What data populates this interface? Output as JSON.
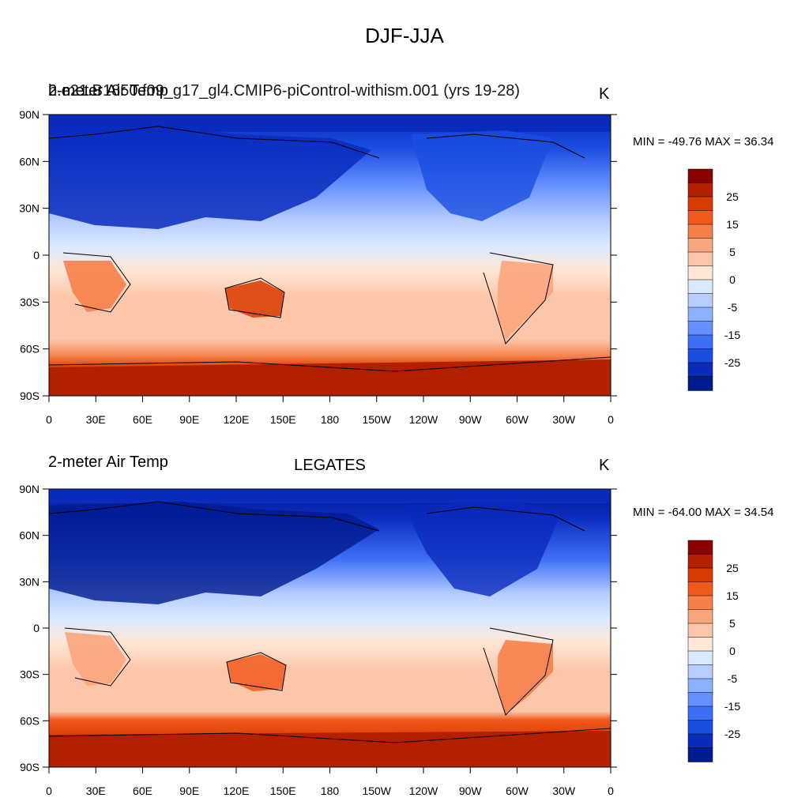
{
  "figure": {
    "title": "DJF-JJA"
  },
  "panels": [
    {
      "left_title_a": "2-meter Air Temp",
      "left_title_b": "b.e21.B1850.f09_g17_gl4.CMIP6-piControl-withism.001 (yrs 19-28)",
      "center_title": "",
      "units": "K",
      "min_max": "MIN = -49.76 MAX =  36.34"
    },
    {
      "left_title_a": "2-meter Air Temp",
      "left_title_b": "",
      "center_title": "LEGATES",
      "units": "K",
      "min_max": "MIN = -64.00 MAX =  34.54"
    }
  ],
  "axes": {
    "lon_labels": [
      "0",
      "30E",
      "60E",
      "90E",
      "120E",
      "150E",
      "180",
      "150W",
      "120W",
      "90W",
      "60W",
      "30W",
      "0"
    ],
    "lat_labels": [
      "90N",
      "60N",
      "30N",
      "0",
      "30S",
      "60S",
      "90S"
    ]
  },
  "colorbar": {
    "labels": [
      "25",
      "15",
      "5",
      "0",
      "-5",
      "-15",
      "-25"
    ],
    "colors": [
      "#8b0000",
      "#b22000",
      "#d93a00",
      "#f15a1e",
      "#f6804a",
      "#f9a57e",
      "#fcc6aa",
      "#fee7d6",
      "#dbe9ff",
      "#b7ceff",
      "#8db0ff",
      "#6690ff",
      "#3d6ff5",
      "#1a4de0",
      "#0b2bbd",
      "#001a8f"
    ]
  },
  "chart_data": [
    {
      "type": "heatmap",
      "title": "DJF-JJA",
      "subtitle": "b.e21.B1850.f09_g17_gl4.CMIP6-piControl-withism.001 (yrs 19-28)",
      "variable": "2-meter Air Temp",
      "units": "K",
      "x_labels": [
        "0",
        "30E",
        "60E",
        "90E",
        "120E",
        "150E",
        "180",
        "150W",
        "120W",
        "90W",
        "60W",
        "30W",
        "0"
      ],
      "y_labels": [
        "90N",
        "60N",
        "30N",
        "0",
        "30S",
        "60S",
        "90S"
      ],
      "xlim": [
        0,
        360
      ],
      "ylim": [
        -90,
        90
      ],
      "min": -49.76,
      "max": 36.34,
      "colorbar_levels": [
        -35,
        -30,
        -25,
        -20,
        -15,
        -10,
        -5,
        0,
        5,
        10,
        15,
        20,
        25,
        30,
        35
      ]
    },
    {
      "type": "heatmap",
      "title": "LEGATES",
      "variable": "2-meter Air Temp",
      "units": "K",
      "x_labels": [
        "0",
        "30E",
        "60E",
        "90E",
        "120E",
        "150E",
        "180",
        "150W",
        "120W",
        "90W",
        "60W",
        "30W",
        "0"
      ],
      "y_labels": [
        "90N",
        "60N",
        "30N",
        "0",
        "30S",
        "60S",
        "90S"
      ],
      "xlim": [
        0,
        360
      ],
      "ylim": [
        -90,
        90
      ],
      "min": -64.0,
      "max": 34.54,
      "colorbar_levels": [
        -35,
        -30,
        -25,
        -20,
        -15,
        -10,
        -5,
        0,
        5,
        10,
        15,
        20,
        25,
        30,
        35
      ]
    }
  ]
}
